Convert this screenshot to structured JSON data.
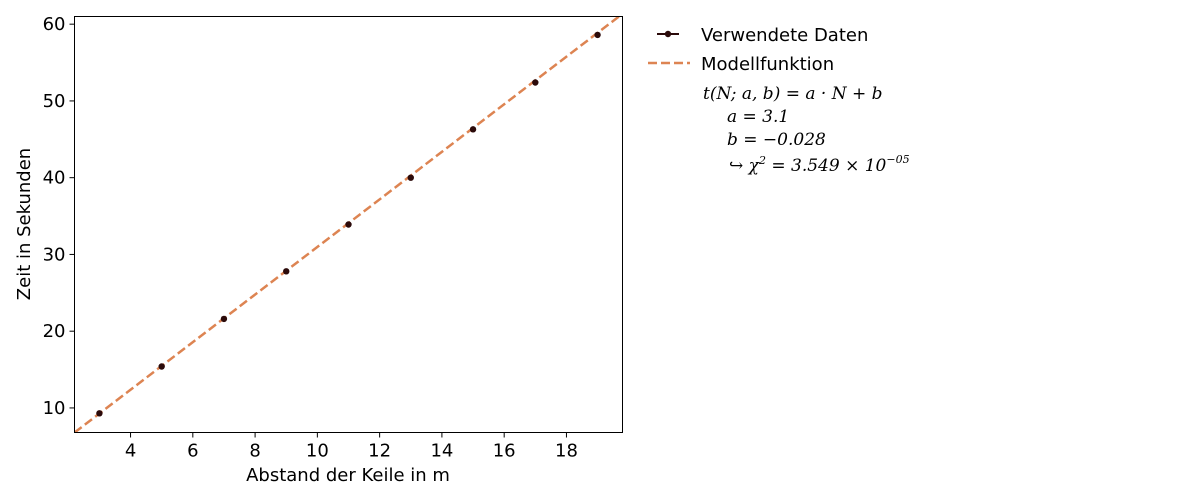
{
  "chart_data": {
    "type": "scatter",
    "xlabel": "Abstand der Keile in m",
    "ylabel": "Zeit in Sekunden",
    "xlim": [
      2.2,
      19.8
    ],
    "ylim": [
      6.8,
      61.0
    ],
    "xticks": [
      4,
      6,
      8,
      10,
      12,
      14,
      16,
      18
    ],
    "yticks": [
      10,
      20,
      30,
      40,
      50,
      60
    ],
    "grid": false,
    "legend_position": "outside-right-top",
    "series": [
      {
        "name": "Verwendete Daten",
        "kind": "points",
        "color": "#2b0a0a",
        "x": [
          3,
          5,
          7,
          9,
          11,
          13,
          15,
          17,
          19
        ],
        "y": [
          9.3,
          15.4,
          21.6,
          27.8,
          33.9,
          40.0,
          46.3,
          52.4,
          58.6
        ]
      },
      {
        "name": "Modellfunktion",
        "kind": "dashed-line",
        "color": "#dd8452",
        "a": 3.1,
        "b": -0.028
      }
    ],
    "formula": {
      "model": "t(N; a, b) = a · N + b",
      "a_line": "a = 3.1",
      "b_line": "b = −0.028",
      "chi_prefix": "↪ χ",
      "chi_exp": "2",
      "chi_mid": " = 3.549 × 10",
      "chi_pow": "−05"
    }
  }
}
